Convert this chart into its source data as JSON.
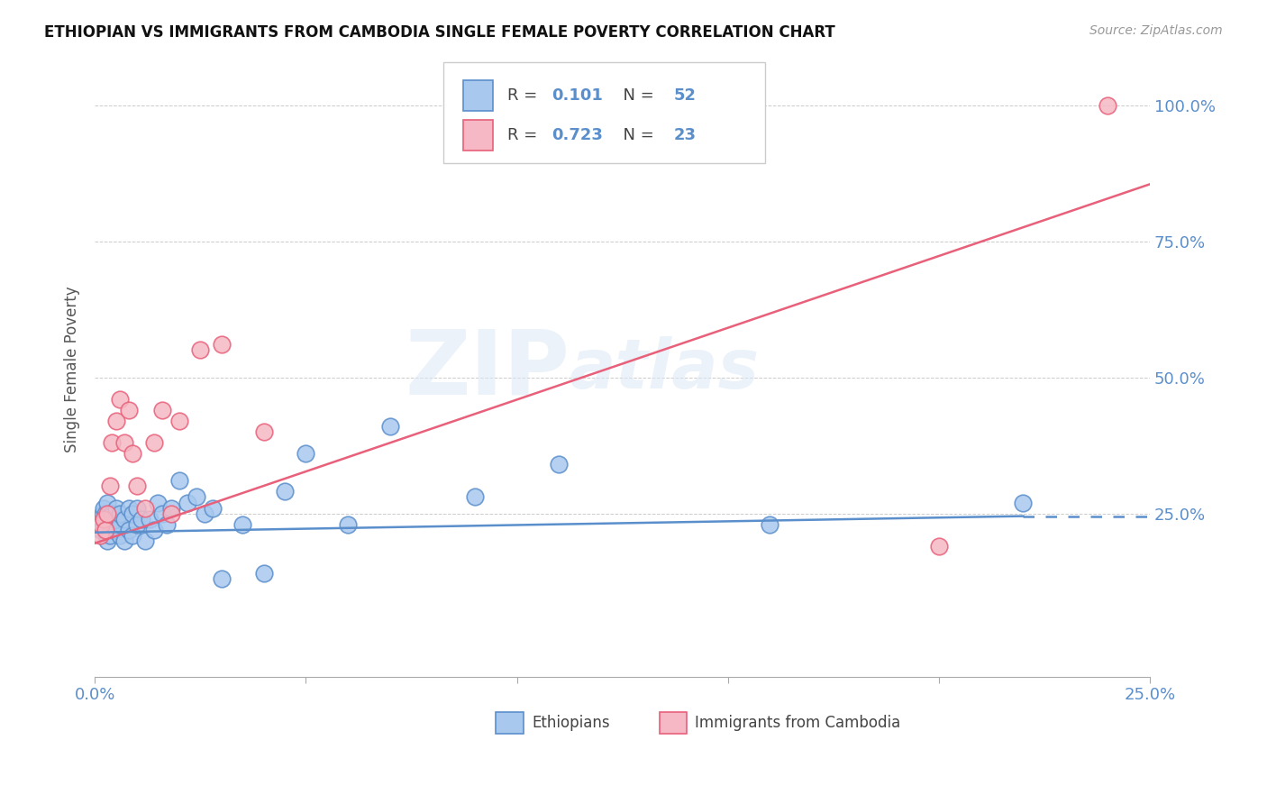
{
  "title": "ETHIOPIAN VS IMMIGRANTS FROM CAMBODIA SINGLE FEMALE POVERTY CORRELATION CHART",
  "source": "Source: ZipAtlas.com",
  "ylabel": "Single Female Poverty",
  "xlim": [
    0.0,
    0.25
  ],
  "ylim": [
    -0.05,
    1.08
  ],
  "ytick_values": [
    0.25,
    0.5,
    0.75,
    1.0
  ],
  "ytick_labels": [
    "25.0%",
    "50.0%",
    "75.0%",
    "100.0%"
  ],
  "xtick_values": [
    0.0,
    0.05,
    0.1,
    0.15,
    0.2,
    0.25
  ],
  "xtick_edge_labels": [
    "0.0%",
    "25.0%"
  ],
  "legend1_R": "0.101",
  "legend1_N": "52",
  "legend2_R": "0.723",
  "legend2_N": "23",
  "blue_color": "#5B8FCC",
  "pink_color": "#E8607A",
  "blue_fill": "#A8C8EE",
  "pink_fill": "#F5B8C4",
  "watermark_zip": "ZIP",
  "watermark_atlas": "atlas",
  "blue_line_x": [
    0.0,
    0.22,
    0.25
  ],
  "blue_line_y": [
    0.215,
    0.245,
    0.245
  ],
  "blue_line_solid_end": 0.22,
  "pink_line_x0": 0.0,
  "pink_line_y0": 0.195,
  "pink_line_x1": 0.25,
  "pink_line_y1": 0.855,
  "eth_x": [
    0.0012,
    0.0015,
    0.0018,
    0.002,
    0.002,
    0.0022,
    0.0025,
    0.003,
    0.003,
    0.003,
    0.0035,
    0.004,
    0.004,
    0.0045,
    0.005,
    0.005,
    0.005,
    0.006,
    0.006,
    0.006,
    0.007,
    0.007,
    0.008,
    0.008,
    0.009,
    0.009,
    0.01,
    0.01,
    0.011,
    0.012,
    0.013,
    0.014,
    0.015,
    0.016,
    0.017,
    0.018,
    0.02,
    0.022,
    0.024,
    0.026,
    0.028,
    0.03,
    0.035,
    0.04,
    0.045,
    0.05,
    0.06,
    0.07,
    0.09,
    0.11,
    0.16,
    0.22
  ],
  "eth_y": [
    0.24,
    0.22,
    0.25,
    0.23,
    0.26,
    0.22,
    0.25,
    0.2,
    0.24,
    0.27,
    0.21,
    0.23,
    0.25,
    0.22,
    0.24,
    0.22,
    0.26,
    0.21,
    0.23,
    0.25,
    0.2,
    0.24,
    0.22,
    0.26,
    0.21,
    0.25,
    0.23,
    0.26,
    0.24,
    0.2,
    0.24,
    0.22,
    0.27,
    0.25,
    0.23,
    0.26,
    0.31,
    0.27,
    0.28,
    0.25,
    0.26,
    0.13,
    0.23,
    0.14,
    0.29,
    0.36,
    0.23,
    0.41,
    0.28,
    0.34,
    0.23,
    0.27
  ],
  "cam_x": [
    0.0012,
    0.0015,
    0.002,
    0.0025,
    0.003,
    0.0035,
    0.004,
    0.005,
    0.006,
    0.007,
    0.008,
    0.009,
    0.01,
    0.012,
    0.014,
    0.016,
    0.018,
    0.02,
    0.025,
    0.03,
    0.04,
    0.2,
    0.24
  ],
  "cam_y": [
    0.21,
    0.23,
    0.24,
    0.22,
    0.25,
    0.3,
    0.38,
    0.42,
    0.46,
    0.38,
    0.44,
    0.36,
    0.3,
    0.26,
    0.38,
    0.44,
    0.25,
    0.42,
    0.55,
    0.56,
    0.4,
    0.19,
    1.0
  ]
}
